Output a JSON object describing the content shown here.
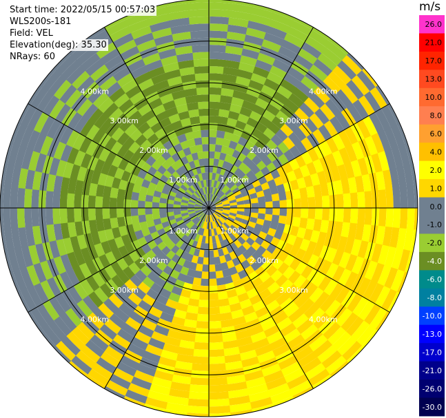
{
  "info": {
    "start_time": "Start time: 2022/05/15 00:57:03",
    "instrument": "WLS200s-181",
    "field": "Field: VEL",
    "elevation": "Elevation(deg): 35.30",
    "nrays": "NRays: 60"
  },
  "colorbar": {
    "unit": "m/s",
    "ticks": [
      "26.0",
      "21.0",
      "17.0",
      "13.0",
      "10.0",
      "8.0",
      "6.0",
      "4.0",
      "2.0",
      "1.0",
      "0.0",
      "-1.0",
      "-2.0",
      "-4.0",
      "-6.0",
      "-8.0",
      "-10.0",
      "-13.0",
      "-17.0",
      "-21.0",
      "-26.0",
      "-30.0"
    ],
    "colors": [
      "#ff33cc",
      "#ff0000",
      "#ff2400",
      "#ff4a20",
      "#ff6a30",
      "#ff7f50",
      "#ffa030",
      "#ffc000",
      "#ffff00",
      "#ffd700",
      "#708090",
      "#708090",
      "#9acd32",
      "#6b8e23",
      "#008b8b",
      "#0080a0",
      "#0040ff",
      "#0000ff",
      "#0000cd",
      "#00008b",
      "#000070",
      "#000050"
    ]
  },
  "chart_data": {
    "type": "polar_ppi",
    "field": "VEL",
    "nrays": 60,
    "max_range_km": 5.0,
    "range_rings_km": [
      1.0,
      2.0,
      3.0,
      4.0
    ],
    "ring_labels": [
      "1.00km",
      "2.00km",
      "3.00km",
      "4.00km"
    ],
    "value_classes": [
      {
        "name": "-2..-1 m/s",
        "color": "#9acd32"
      },
      {
        "name": "-4..-2 m/s",
        "color": "#6b8e23"
      },
      {
        "name": "-1..1 m/s",
        "color": "#708090"
      },
      {
        "name": "1..2 m/s",
        "color": "#ffd700"
      },
      {
        "name": "2..4 m/s",
        "color": "#ffff00"
      }
    ],
    "approx_pattern": "Approaching (green, -1 to -4 m/s) to the west and north; receding (yellow, 1 to 4 m/s) to the south and east; near-zero (gray) band separating them."
  }
}
